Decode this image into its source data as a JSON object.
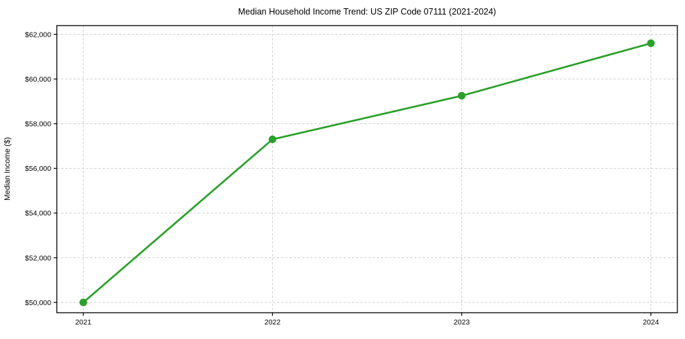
{
  "figure": {
    "background": "#ffffff"
  },
  "chart_data": {
    "type": "line",
    "title": "Median Household Income Trend: US ZIP Code 07111 (2021-2024)",
    "xlabel": "",
    "ylabel": "Median Income ($)",
    "x": [
      2021,
      2022,
      2023,
      2024
    ],
    "xtick_labels": [
      "2021",
      "2022",
      "2023",
      "2024"
    ],
    "series": [
      {
        "name": "Median Household Income",
        "values": [
          50000,
          57300,
          59250,
          61600
        ]
      }
    ],
    "yticks": [
      50000,
      52000,
      54000,
      56000,
      58000,
      60000,
      62000
    ],
    "ytick_labels": [
      "$50,000",
      "$52,000",
      "$54,000",
      "$56,000",
      "$58,000",
      "$60,000",
      "$62,000"
    ],
    "ylim": [
      49540,
      62390
    ],
    "xlim": [
      2020.86,
      2024.14
    ],
    "grid": true,
    "grid_style": "dashed",
    "legend": "none",
    "colors": {
      "line": "#2ca02c",
      "marker": "#2ca02c",
      "grid": "#d0d0d0",
      "axis": "#000000",
      "text": "#000000"
    }
  }
}
